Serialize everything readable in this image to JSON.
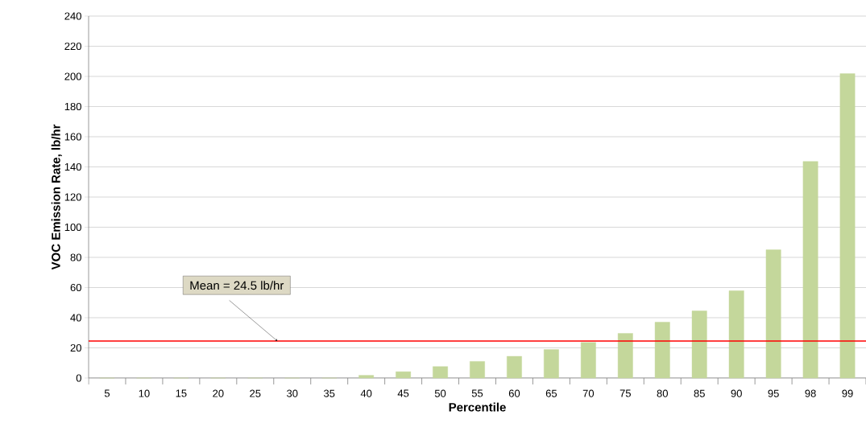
{
  "chart_data": {
    "type": "bar",
    "xlabel": "Percentile",
    "ylabel": "VOC Emission Rate, lb/hr",
    "categories": [
      "5",
      "10",
      "15",
      "20",
      "25",
      "30",
      "35",
      "40",
      "45",
      "50",
      "55",
      "60",
      "65",
      "70",
      "75",
      "80",
      "85",
      "90",
      "95",
      "98",
      "99"
    ],
    "values": [
      0,
      0,
      0,
      0,
      0,
      0,
      0,
      1.8,
      4.2,
      7.6,
      11.0,
      14.4,
      18.9,
      23.6,
      29.6,
      37,
      44.5,
      57.9,
      85,
      143.6,
      201.8
    ],
    "color": "#c4d79b",
    "ylim": [
      0,
      240
    ],
    "yticks": [
      0,
      20,
      40,
      60,
      80,
      100,
      120,
      140,
      160,
      180,
      200,
      220,
      240
    ],
    "grid": "y",
    "ref_lines": [
      {
        "axis": "y",
        "value": 24.5,
        "label": "Mean = 24.5 lb/hr",
        "color": "#ff0000"
      }
    ]
  }
}
